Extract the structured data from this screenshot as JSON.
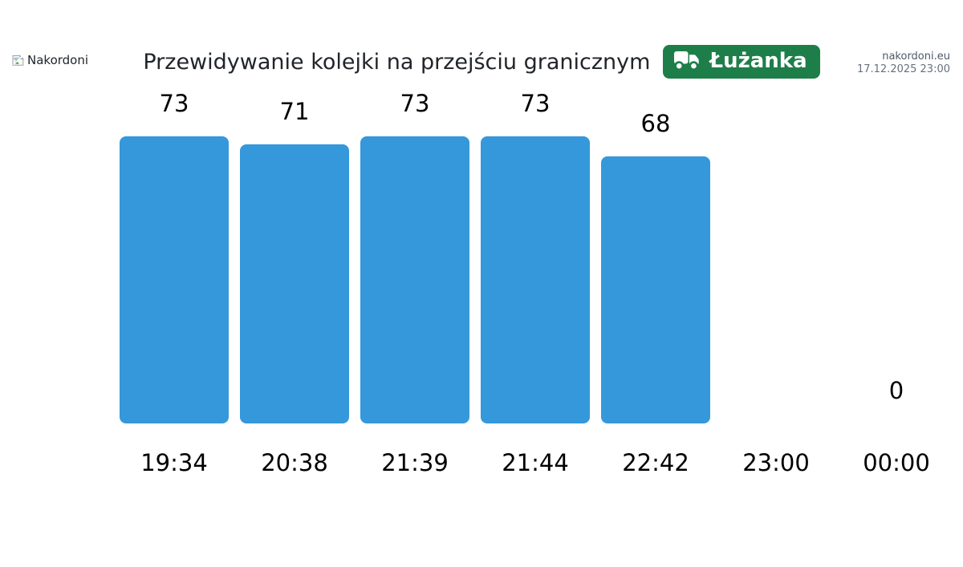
{
  "header": {
    "logo_text": "Nakordoni",
    "site_link": "nakordoni.eu",
    "timestamp": "17.12.2025 23:00"
  },
  "chart_data": {
    "type": "bar",
    "title": "Przewidywanie kolejki na przejściu granicznym",
    "badge_label": "Łużanka",
    "categories": [
      "19:34",
      "20:38",
      "21:39",
      "21:44",
      "22:42",
      "23:00",
      "00:00"
    ],
    "values": [
      73,
      71,
      73,
      73,
      68,
      null,
      0
    ],
    "xlabel": "",
    "ylabel": "",
    "ylim": [
      0,
      80
    ],
    "grid": false,
    "legend": false,
    "bar_color": "#3498db",
    "value_label_color": "#000000"
  },
  "colors": {
    "badge_bg": "#1e7e4a",
    "badge_text": "#ffffff",
    "title_text": "#212529",
    "bar": "#3498db"
  }
}
